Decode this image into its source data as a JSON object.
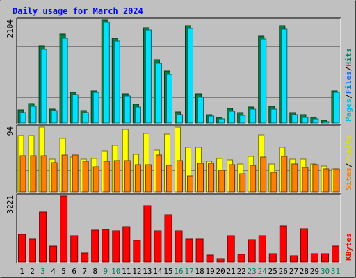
{
  "chart_data": {
    "type": "bar",
    "title": "Daily usage for March 2024",
    "categories": [
      "1",
      "2",
      "3",
      "4",
      "5",
      "6",
      "7",
      "8",
      "9",
      "10",
      "11",
      "12",
      "13",
      "14",
      "15",
      "16",
      "17",
      "18",
      "19",
      "20",
      "21",
      "22",
      "23",
      "24",
      "25",
      "26",
      "27",
      "28",
      "29",
      "30",
      "31"
    ],
    "weekend_days": [
      "3",
      "9",
      "10",
      "16",
      "17",
      "23",
      "24",
      "30",
      "31"
    ],
    "panels": [
      {
        "name": "traffic",
        "ymax": 2104,
        "ymax_label": "2104",
        "legend": [
          "Pages",
          "/",
          "Files",
          "/",
          "Hits"
        ],
        "series": [
          {
            "name": "Hits",
            "color": "#008040",
            "values": [
              270,
              400,
              1580,
              290,
              1820,
              620,
              250,
              650,
              2104,
              1730,
              590,
              390,
              1950,
              1300,
              1060,
              230,
              1990,
              590,
              170,
              110,
              300,
              220,
              330,
              1770,
              340,
              1990,
              210,
              170,
              110,
              60,
              660
            ]
          },
          {
            "name": "Files",
            "color": "#00e0ff",
            "values": [
              220,
              340,
              1510,
              260,
              1740,
              580,
              210,
              620,
              2060,
              1680,
              550,
              330,
              1900,
              1220,
              990,
              170,
              1940,
              530,
              140,
              90,
              240,
              160,
              280,
              1720,
              290,
              1920,
              170,
              120,
              80,
              30,
              620
            ]
          }
        ]
      },
      {
        "name": "visits",
        "ymax": 94,
        "ymax_label": "94",
        "legend": [
          "Sites",
          "/",
          "Visits"
        ],
        "series": [
          {
            "name": "Visits",
            "color": "#ffff00",
            "values": [
              82,
              82,
              94,
              48,
              78,
              51,
              47,
              49,
              60,
              68,
              91,
              55,
              85,
              61,
              84,
              94,
              65,
              65,
              44,
              49,
              46,
              40,
              52,
              83,
              40,
              65,
              48,
              48,
              40,
              37,
              33
            ]
          },
          {
            "name": "Sites",
            "color": "#ff8000",
            "values": [
              53,
              53,
              53,
              42,
              54,
              54,
              44,
              36,
              44,
              45,
              45,
              39,
              39,
              54,
              38,
              45,
              23,
              41,
              41,
              31,
              39,
              26,
              38,
              51,
              28,
              52,
              40,
              35,
              39,
              33,
              33
            ]
          }
        ]
      },
      {
        "name": "kbytes",
        "ymax": 3221,
        "ymax_label": "3221",
        "legend": [
          "KBytes"
        ],
        "series": [
          {
            "name": "KBytes",
            "color": "#ff0000",
            "values": [
              1360,
              1130,
              2430,
              770,
              3221,
              1300,
              450,
              1570,
              1580,
              1530,
              1720,
              1040,
              2730,
              1540,
              2290,
              1520,
              1130,
              1110,
              330,
              160,
              1290,
              380,
              1080,
              1300,
              400,
              1750,
              300,
              1640,
              390,
              390,
              780
            ]
          }
        ]
      }
    ]
  },
  "colors": {
    "background": "#c0c0c0",
    "plot_background": "#c0c0c0",
    "title": "#0000ff",
    "weekday_label": "#000000",
    "weekend_label": "#00805c"
  }
}
